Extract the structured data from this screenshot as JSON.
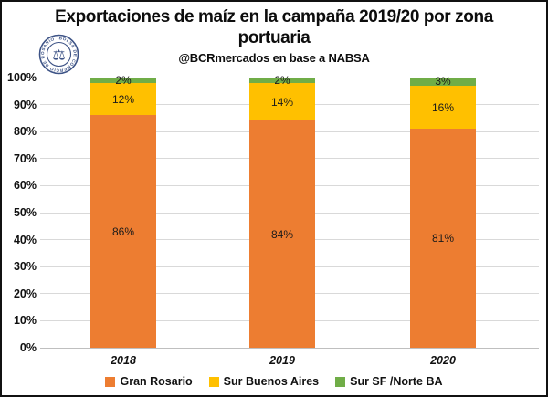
{
  "header": {
    "title": "Exportaciones de maíz en la campaña 2019/20 por zona portuaria",
    "subtitle": "@BCRmercados en base a NABSA",
    "logo_text": "BOLSA DE COMERCIO DE ROSARIO",
    "logo_glyph": "⚖",
    "logo_color": "#3d5386"
  },
  "chart_data": {
    "type": "bar",
    "variant": "stacked-100-percent",
    "title": "Exportaciones de maíz en la campaña 2019/20 por zona portuaria",
    "subtitle": "@BCRmercados en base a NABSA",
    "categories": [
      "2018",
      "2019",
      "2020"
    ],
    "series": [
      {
        "name": "Gran Rosario",
        "color": "#ED7D31",
        "values": [
          86,
          84,
          81
        ]
      },
      {
        "name": "Sur Buenos Aires",
        "color": "#FFC000",
        "values": [
          12,
          14,
          16
        ]
      },
      {
        "name": "Sur SF /Norte BA",
        "color": "#70AD47",
        "values": [
          2,
          2,
          3
        ]
      }
    ],
    "value_suffix": "%",
    "y_ticks": [
      "0%",
      "10%",
      "20%",
      "30%",
      "40%",
      "50%",
      "60%",
      "70%",
      "80%",
      "90%",
      "100%"
    ],
    "ylim": [
      0,
      100
    ],
    "grid": true,
    "gridline_color": "#D9D9D9",
    "legend_position": "bottom",
    "data_label_color": "#1a1a1a"
  }
}
